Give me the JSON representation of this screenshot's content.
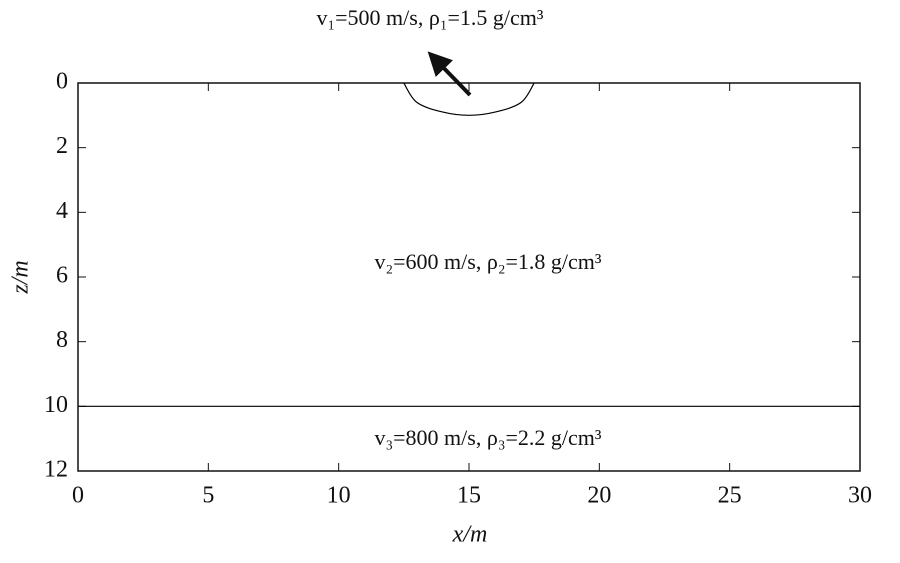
{
  "chart_data": {
    "type": "line",
    "xlabel": "x/m",
    "ylabel": "z/m",
    "xlim": [
      0,
      30
    ],
    "ylim": [
      0,
      12
    ],
    "y_inverted": true,
    "xticks": [
      0,
      5,
      10,
      15,
      20,
      25,
      30
    ],
    "yticks": [
      0,
      2,
      4,
      6,
      8,
      10,
      12
    ],
    "series": [
      {
        "color": "#000000",
        "x": [
          12.5,
          13,
          14,
          15,
          16,
          17,
          17.5
        ],
        "values": [
          0,
          0.6,
          0.9,
          1,
          0.9,
          0.6,
          0
        ]
      },
      {
        "color": "#000000",
        "x": [
          0,
          30
        ],
        "values": [
          10,
          10
        ]
      }
    ],
    "annotations": [
      "v₁=500 m/s, ρ₁=1.5 g/cm³",
      "v₂=600 m/s, ρ₂=1.8 g/cm³",
      "v₃=800 m/s, ρ₃=2.2 g/cm³"
    ]
  }
}
